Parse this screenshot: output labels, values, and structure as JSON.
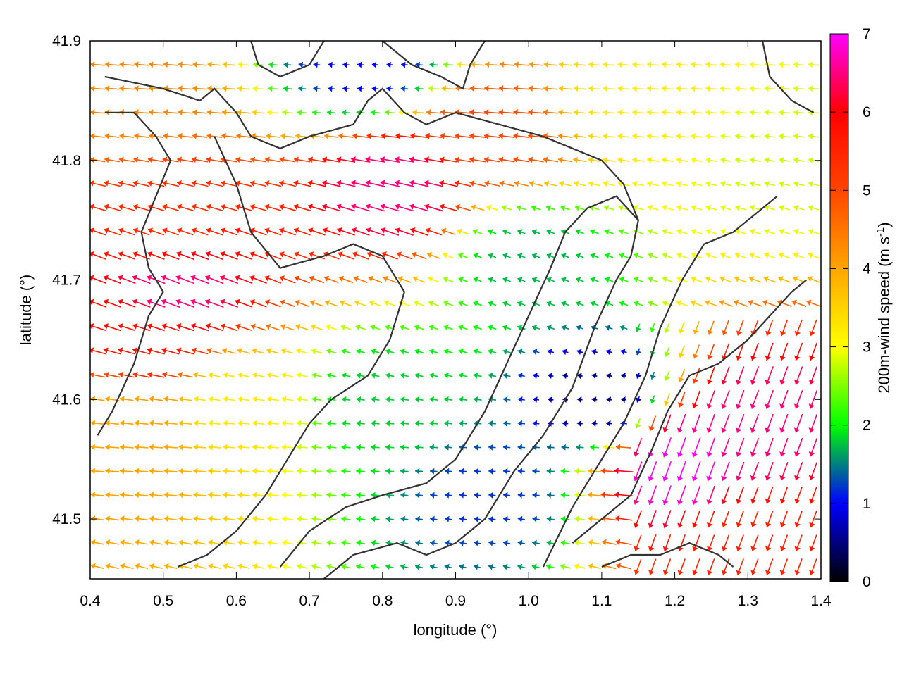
{
  "chart_data": {
    "type": "vector-field",
    "xlabel": "longitude (°)",
    "ylabel": "latitude (°)",
    "xlim": [
      0.4,
      1.4
    ],
    "ylim": [
      41.45,
      41.9
    ],
    "xticks": [
      "0.4",
      "0.5",
      "0.6",
      "0.7",
      "0.8",
      "0.9",
      "1.0",
      "1.1",
      "1.2",
      "1.3",
      "1.4"
    ],
    "yticks": [
      "41.5",
      "41.6",
      "41.7",
      "41.8",
      "41.9"
    ],
    "colorbar": {
      "label_parts": [
        "200m-wind speed (m s",
        "-1",
        ")"
      ],
      "range": [
        0,
        7
      ],
      "ticks": [
        "0",
        "1",
        "2",
        "3",
        "4",
        "5",
        "6",
        "7"
      ],
      "stops": [
        {
          "v": 0,
          "color": "#000000"
        },
        {
          "v": 1,
          "color": "#0000ff"
        },
        {
          "v": 2,
          "color": "#00ff00"
        },
        {
          "v": 3,
          "color": "#ffff00"
        },
        {
          "v": 4,
          "color": "#ffa500"
        },
        {
          "v": 5,
          "color": "#ff4500"
        },
        {
          "v": 6,
          "color": "#ff0000"
        },
        {
          "v": 7,
          "color": "#ff00ff"
        }
      ]
    },
    "grid_step_deg": 0.02,
    "speed_samples_m_s": [
      {
        "lon": 0.45,
        "lat": 41.85,
        "speed": 4.3
      },
      {
        "lon": 0.5,
        "lat": 41.75,
        "speed": 5.4
      },
      {
        "lon": 0.52,
        "lat": 41.69,
        "speed": 6.5
      },
      {
        "lon": 0.48,
        "lat": 41.65,
        "speed": 5.8
      },
      {
        "lon": 0.45,
        "lat": 41.58,
        "speed": 4.0
      },
      {
        "lon": 0.6,
        "lat": 41.6,
        "speed": 3.2
      },
      {
        "lon": 0.82,
        "lat": 41.78,
        "speed": 6.5
      },
      {
        "lon": 0.95,
        "lat": 41.82,
        "speed": 5.0
      },
      {
        "lon": 0.8,
        "lat": 41.6,
        "speed": 1.8
      },
      {
        "lon": 0.95,
        "lat": 41.52,
        "speed": 1.2
      },
      {
        "lon": 1.1,
        "lat": 41.6,
        "speed": 0.5
      },
      {
        "lon": 1.0,
        "lat": 41.72,
        "speed": 1.7
      },
      {
        "lon": 0.78,
        "lat": 41.88,
        "speed": 1.0
      },
      {
        "lon": 1.2,
        "lat": 41.55,
        "speed": 7.0
      },
      {
        "lon": 1.3,
        "lat": 41.58,
        "speed": 6.5
      },
      {
        "lon": 1.3,
        "lat": 41.48,
        "speed": 5.5
      },
      {
        "lon": 1.15,
        "lat": 41.85,
        "speed": 3.2
      },
      {
        "lon": 1.35,
        "lat": 41.8,
        "speed": 2.8
      }
    ],
    "contours": [
      [
        [
          0.42,
          41.87
        ],
        [
          0.5,
          41.86
        ],
        [
          0.55,
          41.85
        ],
        [
          0.57,
          41.86
        ],
        [
          0.6,
          41.84
        ],
        [
          0.62,
          41.82
        ],
        [
          0.66,
          41.81
        ],
        [
          0.7,
          41.82
        ],
        [
          0.76,
          41.83
        ],
        [
          0.78,
          41.85
        ],
        [
          0.8,
          41.86
        ],
        [
          0.83,
          41.84
        ],
        [
          0.86,
          41.83
        ],
        [
          0.9,
          41.84
        ],
        [
          0.96,
          41.83
        ],
        [
          1.02,
          41.82
        ],
        [
          1.06,
          41.81
        ],
        [
          1.1,
          41.8
        ],
        [
          1.13,
          41.78
        ],
        [
          1.15,
          41.75
        ],
        [
          1.14,
          41.72
        ],
        [
          1.12,
          41.7
        ],
        [
          1.09,
          41.66
        ],
        [
          1.06,
          41.61
        ],
        [
          1.02,
          41.57
        ],
        [
          0.98,
          41.54
        ],
        [
          0.94,
          41.5
        ],
        [
          0.9,
          41.48
        ],
        [
          0.86,
          41.47
        ],
        [
          0.82,
          41.48
        ],
        [
          0.76,
          41.47
        ],
        [
          0.72,
          41.45
        ]
      ],
      [
        [
          0.42,
          41.84
        ],
        [
          0.46,
          41.84
        ],
        [
          0.49,
          41.82
        ],
        [
          0.51,
          41.8
        ],
        [
          0.49,
          41.77
        ],
        [
          0.47,
          41.74
        ],
        [
          0.48,
          41.71
        ],
        [
          0.5,
          41.69
        ],
        [
          0.48,
          41.67
        ],
        [
          0.46,
          41.63
        ],
        [
          0.43,
          41.59
        ],
        [
          0.41,
          41.57
        ]
      ],
      [
        [
          0.57,
          41.82
        ],
        [
          0.6,
          41.78
        ],
        [
          0.62,
          41.74
        ],
        [
          0.66,
          41.71
        ],
        [
          0.72,
          41.72
        ],
        [
          0.76,
          41.73
        ],
        [
          0.8,
          41.72
        ],
        [
          0.83,
          41.69
        ],
        [
          0.81,
          41.65
        ],
        [
          0.78,
          41.62
        ],
        [
          0.73,
          41.6
        ],
        [
          0.7,
          41.58
        ],
        [
          0.67,
          41.55
        ],
        [
          0.64,
          41.52
        ],
        [
          0.6,
          41.49
        ],
        [
          0.56,
          41.47
        ],
        [
          0.52,
          41.46
        ]
      ],
      [
        [
          0.66,
          41.46
        ],
        [
          0.7,
          41.49
        ],
        [
          0.75,
          41.51
        ],
        [
          0.8,
          41.52
        ],
        [
          0.86,
          41.53
        ],
        [
          0.9,
          41.55
        ],
        [
          0.94,
          41.59
        ],
        [
          0.97,
          41.63
        ],
        [
          1.0,
          41.67
        ],
        [
          1.03,
          41.71
        ],
        [
          1.05,
          41.74
        ],
        [
          1.08,
          41.76
        ],
        [
          1.12,
          41.77
        ],
        [
          1.15,
          41.75
        ]
      ],
      [
        [
          1.02,
          41.46
        ],
        [
          1.06,
          41.51
        ],
        [
          1.1,
          41.55
        ],
        [
          1.13,
          41.58
        ],
        [
          1.16,
          41.62
        ],
        [
          1.18,
          41.66
        ],
        [
          1.21,
          41.7
        ],
        [
          1.24,
          41.73
        ],
        [
          1.28,
          41.74
        ],
        [
          1.32,
          41.76
        ],
        [
          1.34,
          41.77
        ]
      ],
      [
        [
          1.06,
          41.48
        ],
        [
          1.1,
          41.5
        ],
        [
          1.14,
          41.52
        ],
        [
          1.17,
          41.56
        ],
        [
          1.19,
          41.59
        ],
        [
          1.22,
          41.62
        ],
        [
          1.26,
          41.63
        ],
        [
          1.3,
          41.65
        ],
        [
          1.33,
          41.67
        ],
        [
          1.36,
          41.69
        ],
        [
          1.38,
          41.7
        ]
      ],
      [
        [
          1.1,
          41.46
        ],
        [
          1.14,
          41.47
        ],
        [
          1.18,
          41.47
        ],
        [
          1.22,
          41.48
        ],
        [
          1.26,
          41.47
        ],
        [
          1.28,
          41.46
        ]
      ],
      [
        [
          1.32,
          41.9
        ],
        [
          1.33,
          41.87
        ],
        [
          1.36,
          41.85
        ],
        [
          1.39,
          41.84
        ]
      ],
      [
        [
          0.62,
          41.9
        ],
        [
          0.63,
          41.88
        ],
        [
          0.66,
          41.87
        ],
        [
          0.7,
          41.88
        ],
        [
          0.72,
          41.9
        ]
      ],
      [
        [
          0.8,
          41.9
        ],
        [
          0.84,
          41.88
        ],
        [
          0.88,
          41.87
        ],
        [
          0.91,
          41.86
        ],
        [
          0.92,
          41.88
        ],
        [
          0.94,
          41.9
        ]
      ]
    ]
  }
}
